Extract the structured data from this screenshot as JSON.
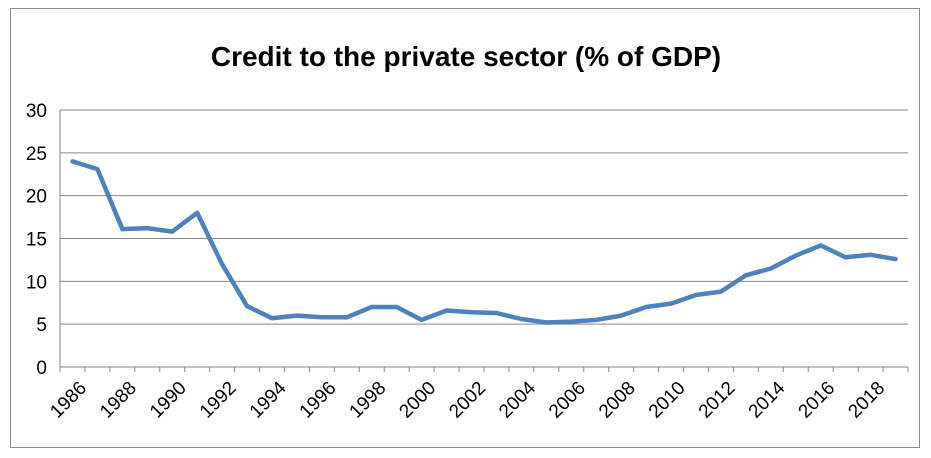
{
  "chart_data": {
    "type": "line",
    "title": "Credit to the private sector (% of GDP)",
    "xlabel": "",
    "ylabel": "",
    "ylim": [
      0,
      30
    ],
    "yticks": [
      0,
      5,
      10,
      15,
      20,
      25,
      30
    ],
    "xlim": [
      1986,
      2019
    ],
    "xticks": [
      1986,
      1988,
      1990,
      1992,
      1994,
      1996,
      1998,
      2000,
      2002,
      2004,
      2006,
      2008,
      2010,
      2012,
      2014,
      2016,
      2018
    ],
    "grid": true,
    "legend": "none",
    "series": [
      {
        "color": "#4f81bd",
        "x": [
          1986,
          1987,
          1988,
          1989,
          1990,
          1991,
          1992,
          1993,
          1994,
          1995,
          1996,
          1997,
          1998,
          1999,
          2000,
          2001,
          2002,
          2003,
          2004,
          2005,
          2006,
          2007,
          2008,
          2009,
          2010,
          2011,
          2012,
          2013,
          2014,
          2015,
          2016,
          2017,
          2018,
          2019
        ],
        "values": [
          24.0,
          23.1,
          16.1,
          16.2,
          15.8,
          18.0,
          12.0,
          7.1,
          5.7,
          6.0,
          5.8,
          5.8,
          7.0,
          7.0,
          5.5,
          6.6,
          6.4,
          6.3,
          5.6,
          5.2,
          5.3,
          5.5,
          6.0,
          7.0,
          7.4,
          8.4,
          8.8,
          10.7,
          11.5,
          13.0,
          14.2,
          12.8,
          13.1,
          12.6
        ]
      }
    ]
  }
}
